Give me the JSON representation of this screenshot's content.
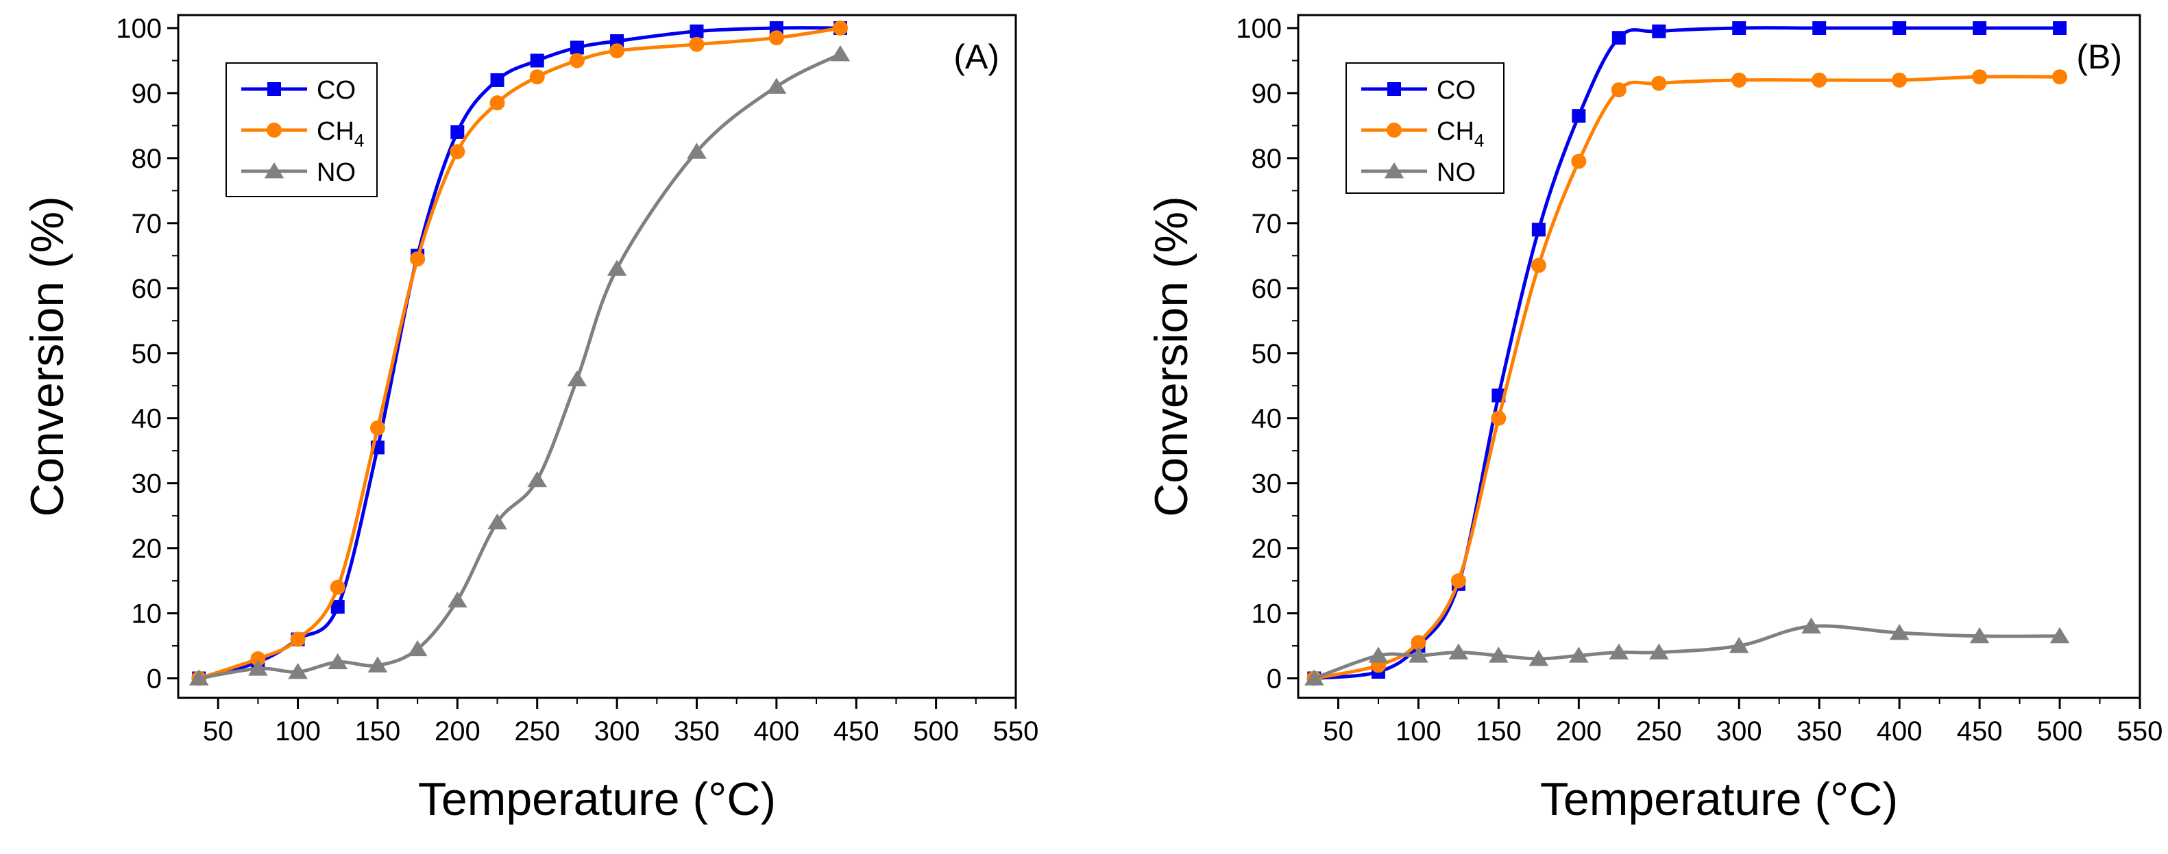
{
  "chart_data": [
    {
      "type": "line",
      "panel_label": "(A)",
      "xlabel": "Temperature (°C)",
      "ylabel": "Conversion (%)",
      "xlim": [
        25,
        550
      ],
      "ylim": [
        -3,
        102
      ],
      "xticks": [
        50,
        100,
        150,
        200,
        250,
        300,
        350,
        400,
        450,
        500,
        550
      ],
      "yticks": [
        0,
        10,
        20,
        30,
        40,
        50,
        60,
        70,
        80,
        90,
        100
      ],
      "xtick_labels": [
        "50",
        "100",
        "150",
        "200",
        "250",
        "300",
        "350",
        "400",
        "450",
        "500",
        "550"
      ],
      "ytick_labels": [
        "0",
        "10",
        "20",
        "30",
        "40",
        "50",
        "60",
        "70",
        "80",
        "90",
        "100"
      ],
      "legend_position": "top-left",
      "series": [
        {
          "name": "CO",
          "name_main": "CO",
          "name_sub": "",
          "color": "#0000ee",
          "marker": "square",
          "x": [
            38,
            75,
            100,
            125,
            150,
            175,
            200,
            225,
            250,
            275,
            300,
            350,
            400,
            440
          ],
          "y": [
            0,
            2.5,
            6,
            11,
            35.5,
            65,
            84,
            92,
            95,
            97,
            98,
            99.5,
            100,
            100
          ]
        },
        {
          "name": "CH4",
          "name_main": "CH",
          "name_sub": "4",
          "color": "#ff8000",
          "marker": "circle",
          "x": [
            38,
            75,
            100,
            125,
            150,
            175,
            200,
            225,
            250,
            275,
            300,
            350,
            400,
            440
          ],
          "y": [
            0,
            3,
            6,
            14,
            38.5,
            64.5,
            81,
            88.5,
            92.5,
            95,
            96.5,
            97.5,
            98.5,
            100
          ]
        },
        {
          "name": "NO",
          "name_main": "NO",
          "name_sub": "",
          "color": "#808080",
          "marker": "triangle",
          "x": [
            38,
            75,
            100,
            125,
            150,
            175,
            200,
            225,
            250,
            275,
            300,
            350,
            400,
            440
          ],
          "y": [
            0,
            1.5,
            1,
            2.5,
            2,
            4.5,
            12,
            24,
            30.5,
            46,
            63,
            81,
            91,
            96
          ]
        }
      ]
    },
    {
      "type": "line",
      "panel_label": "(B)",
      "xlabel": "Temperature (°C)",
      "ylabel": "Conversion (%)",
      "xlim": [
        25,
        550
      ],
      "ylim": [
        -3,
        102
      ],
      "xticks": [
        50,
        100,
        150,
        200,
        250,
        300,
        350,
        400,
        450,
        500,
        550
      ],
      "yticks": [
        0,
        10,
        20,
        30,
        40,
        50,
        60,
        70,
        80,
        90,
        100
      ],
      "xtick_labels": [
        "50",
        "100",
        "150",
        "200",
        "250",
        "300",
        "350",
        "400",
        "450",
        "500",
        "550"
      ],
      "ytick_labels": [
        "0",
        "10",
        "20",
        "30",
        "40",
        "50",
        "60",
        "70",
        "80",
        "90",
        "100"
      ],
      "legend_position": "top-left",
      "series": [
        {
          "name": "CO",
          "name_main": "CO",
          "name_sub": "",
          "color": "#0000ee",
          "marker": "square",
          "x": [
            35,
            75,
            100,
            125,
            150,
            175,
            200,
            225,
            250,
            300,
            350,
            400,
            450,
            500
          ],
          "y": [
            0,
            1,
            5,
            14.5,
            43.5,
            69,
            86.5,
            98.5,
            99.5,
            100,
            100,
            100,
            100,
            100
          ]
        },
        {
          "name": "CH4",
          "name_main": "CH",
          "name_sub": "4",
          "color": "#ff8000",
          "marker": "circle",
          "x": [
            35,
            75,
            100,
            125,
            150,
            175,
            200,
            225,
            250,
            300,
            350,
            400,
            450,
            500
          ],
          "y": [
            0,
            2,
            5.5,
            15,
            40,
            63.5,
            79.5,
            90.5,
            91.5,
            92,
            92,
            92,
            92.5,
            92.5
          ]
        },
        {
          "name": "NO",
          "name_main": "NO",
          "name_sub": "",
          "color": "#808080",
          "marker": "triangle",
          "x": [
            35,
            75,
            100,
            125,
            150,
            175,
            200,
            225,
            250,
            300,
            345,
            400,
            450,
            500
          ],
          "y": [
            0,
            3.5,
            3.5,
            4,
            3.5,
            3,
            3.5,
            4,
            4,
            5,
            8,
            7,
            6.5,
            6.5
          ]
        }
      ]
    }
  ]
}
